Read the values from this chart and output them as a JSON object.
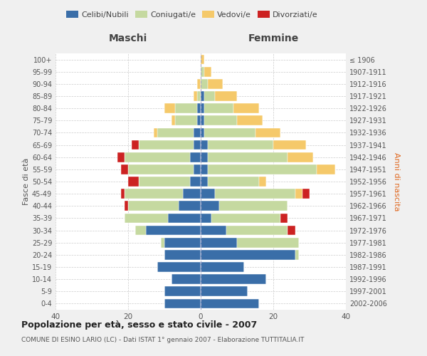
{
  "age_groups": [
    "0-4",
    "5-9",
    "10-14",
    "15-19",
    "20-24",
    "25-29",
    "30-34",
    "35-39",
    "40-44",
    "45-49",
    "50-54",
    "55-59",
    "60-64",
    "65-69",
    "70-74",
    "75-79",
    "80-84",
    "85-89",
    "90-94",
    "95-99",
    "100+"
  ],
  "birth_years": [
    "2002-2006",
    "1997-2001",
    "1992-1996",
    "1987-1991",
    "1982-1986",
    "1977-1981",
    "1972-1976",
    "1967-1971",
    "1962-1966",
    "1957-1961",
    "1952-1956",
    "1947-1951",
    "1942-1946",
    "1937-1941",
    "1932-1936",
    "1927-1931",
    "1922-1926",
    "1917-1921",
    "1912-1916",
    "1907-1911",
    "≤ 1906"
  ],
  "colors": {
    "celibi": "#3a6ea8",
    "coniugati": "#c5d9a0",
    "vedovi": "#f5c96a",
    "divorziati": "#cc2222"
  },
  "maschi": {
    "celibi": [
      10,
      10,
      8,
      12,
      10,
      10,
      15,
      9,
      6,
      5,
      3,
      2,
      3,
      2,
      2,
      1,
      1,
      0,
      0,
      0,
      0
    ],
    "coniugati": [
      0,
      0,
      0,
      0,
      0,
      1,
      3,
      12,
      14,
      16,
      14,
      18,
      18,
      15,
      10,
      6,
      6,
      1,
      0,
      0,
      0
    ],
    "vedovi": [
      0,
      0,
      0,
      0,
      0,
      0,
      0,
      0,
      0,
      0,
      0,
      0,
      0,
      0,
      1,
      1,
      3,
      1,
      1,
      0,
      0
    ],
    "divorziati": [
      0,
      0,
      0,
      0,
      0,
      0,
      0,
      0,
      1,
      1,
      3,
      2,
      2,
      2,
      0,
      0,
      0,
      0,
      0,
      0,
      0
    ]
  },
  "femmine": {
    "celibi": [
      16,
      13,
      18,
      12,
      26,
      10,
      7,
      3,
      5,
      4,
      2,
      2,
      2,
      2,
      1,
      1,
      1,
      1,
      0,
      0,
      0
    ],
    "coniugati": [
      0,
      0,
      0,
      0,
      1,
      17,
      17,
      19,
      19,
      22,
      14,
      30,
      22,
      18,
      14,
      9,
      8,
      3,
      2,
      1,
      0
    ],
    "vedovi": [
      0,
      0,
      0,
      0,
      0,
      0,
      0,
      0,
      0,
      2,
      2,
      5,
      7,
      9,
      7,
      7,
      7,
      6,
      4,
      2,
      1
    ],
    "divorziati": [
      0,
      0,
      0,
      0,
      0,
      0,
      2,
      2,
      0,
      2,
      0,
      0,
      0,
      0,
      0,
      0,
      0,
      0,
      0,
      0,
      0
    ]
  },
  "title": "Popolazione per età, sesso e stato civile - 2007",
  "subtitle": "COMUNE DI ESINO LARIO (LC) - Dati ISTAT 1° gennaio 2007 - Elaborazione TUTTITALIA.IT",
  "xlabel_left": "Maschi",
  "xlabel_right": "Femmine",
  "ylabel_left": "Fasce di età",
  "ylabel_right": "Anni di nascita",
  "xlim": 40,
  "bg_color": "#f0f0f0",
  "plot_bg": "#ffffff",
  "legend_labels": [
    "Celibi/Nubili",
    "Coniugati/e",
    "Vedovi/e",
    "Divorziati/e"
  ],
  "grid_color": "#cccccc"
}
